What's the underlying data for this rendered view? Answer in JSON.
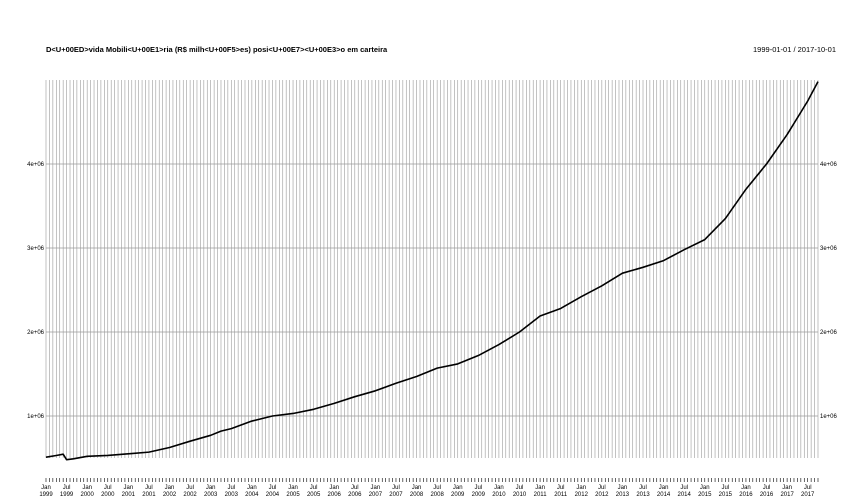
{
  "chart_data": {
    "type": "line",
    "title": "D<U+00ED>vida Mobili<U+00E1>ria (R$ milh<U+00F5>es) posi<U+00E7><U+00E3>o em carteira",
    "date_range": "1999-01-01 / 2017-10-01",
    "xlabel": "",
    "ylabel": "",
    "x_start": "1999-01",
    "x_end": "2017-10",
    "frequency": "monthly",
    "xlim": [
      "1999-01",
      "2017-10"
    ],
    "ylim": [
      500000,
      5000000
    ],
    "grid": true,
    "y_ticks": [
      {
        "value": 1000000,
        "label": "1e+06"
      },
      {
        "value": 2000000,
        "label": "2e+06"
      },
      {
        "value": 3000000,
        "label": "3e+06"
      },
      {
        "value": 4000000,
        "label": "4e+06"
      }
    ],
    "x_tick_labels": [
      {
        "date": "1999-01",
        "month": "Jan",
        "year": "1999"
      },
      {
        "date": "1999-07",
        "month": "Jul",
        "year": "1999"
      },
      {
        "date": "2000-01",
        "month": "Jan",
        "year": "2000"
      },
      {
        "date": "2000-07",
        "month": "Jul",
        "year": "2000"
      },
      {
        "date": "2001-01",
        "month": "Jan",
        "year": "2001"
      },
      {
        "date": "2001-07",
        "month": "Jul",
        "year": "2001"
      },
      {
        "date": "2002-01",
        "month": "Jan",
        "year": "2002"
      },
      {
        "date": "2002-07",
        "month": "Jul",
        "year": "2002"
      },
      {
        "date": "2003-01",
        "month": "Jan",
        "year": "2003"
      },
      {
        "date": "2003-07",
        "month": "Jul",
        "year": "2003"
      },
      {
        "date": "2004-01",
        "month": "Jan",
        "year": "2004"
      },
      {
        "date": "2004-07",
        "month": "Jul",
        "year": "2004"
      },
      {
        "date": "2005-01",
        "month": "Jan",
        "year": "2005"
      },
      {
        "date": "2005-07",
        "month": "Jul",
        "year": "2005"
      },
      {
        "date": "2006-01",
        "month": "Jan",
        "year": "2006"
      },
      {
        "date": "2006-07",
        "month": "Jul",
        "year": "2006"
      },
      {
        "date": "2007-01",
        "month": "Jan",
        "year": "2007"
      },
      {
        "date": "2007-07",
        "month": "Jul",
        "year": "2007"
      },
      {
        "date": "2008-01",
        "month": "Jan",
        "year": "2008"
      },
      {
        "date": "2008-07",
        "month": "Jul",
        "year": "2008"
      },
      {
        "date": "2009-01",
        "month": "Jan",
        "year": "2009"
      },
      {
        "date": "2009-07",
        "month": "Jul",
        "year": "2009"
      },
      {
        "date": "2010-01",
        "month": "Jan",
        "year": "2010"
      },
      {
        "date": "2010-07",
        "month": "Jul",
        "year": "2010"
      },
      {
        "date": "2011-01",
        "month": "Jan",
        "year": "2011"
      },
      {
        "date": "2011-07",
        "month": "Jul",
        "year": "2011"
      },
      {
        "date": "2012-01",
        "month": "Jan",
        "year": "2012"
      },
      {
        "date": "2012-07",
        "month": "Jul",
        "year": "2012"
      },
      {
        "date": "2013-01",
        "month": "Jan",
        "year": "2013"
      },
      {
        "date": "2013-07",
        "month": "Jul",
        "year": "2013"
      },
      {
        "date": "2014-01",
        "month": "Jan",
        "year": "2014"
      },
      {
        "date": "2014-07",
        "month": "Jul",
        "year": "2014"
      },
      {
        "date": "2015-01",
        "month": "Jan",
        "year": "2015"
      },
      {
        "date": "2015-07",
        "month": "Jul",
        "year": "2015"
      },
      {
        "date": "2016-01",
        "month": "Jan",
        "year": "2016"
      },
      {
        "date": "2016-07",
        "month": "Jul",
        "year": "2016"
      },
      {
        "date": "2017-01",
        "month": "Jan",
        "year": "2017"
      },
      {
        "date": "2017-07",
        "month": "Jul",
        "year": "2017"
      }
    ],
    "series": [
      {
        "values": [
          {
            "x": "1999-01",
            "y": 510000
          },
          {
            "x": "1999-04",
            "y": 530000
          },
          {
            "x": "1999-06",
            "y": 545000
          },
          {
            "x": "1999-07",
            "y": 480000
          },
          {
            "x": "1999-09",
            "y": 490000
          },
          {
            "x": "2000-01",
            "y": 520000
          },
          {
            "x": "2000-07",
            "y": 530000
          },
          {
            "x": "2001-01",
            "y": 550000
          },
          {
            "x": "2001-07",
            "y": 570000
          },
          {
            "x": "2002-01",
            "y": 625000
          },
          {
            "x": "2002-07",
            "y": 700000
          },
          {
            "x": "2003-01",
            "y": 770000
          },
          {
            "x": "2003-04",
            "y": 820000
          },
          {
            "x": "2003-07",
            "y": 850000
          },
          {
            "x": "2004-01",
            "y": 940000
          },
          {
            "x": "2004-07",
            "y": 1000000
          },
          {
            "x": "2005-01",
            "y": 1030000
          },
          {
            "x": "2005-07",
            "y": 1080000
          },
          {
            "x": "2006-01",
            "y": 1150000
          },
          {
            "x": "2006-07",
            "y": 1230000
          },
          {
            "x": "2007-01",
            "y": 1300000
          },
          {
            "x": "2007-07",
            "y": 1390000
          },
          {
            "x": "2008-01",
            "y": 1470000
          },
          {
            "x": "2008-07",
            "y": 1570000
          },
          {
            "x": "2009-01",
            "y": 1620000
          },
          {
            "x": "2009-07",
            "y": 1720000
          },
          {
            "x": "2010-01",
            "y": 1850000
          },
          {
            "x": "2010-07",
            "y": 2000000
          },
          {
            "x": "2011-01",
            "y": 2190000
          },
          {
            "x": "2011-07",
            "y": 2280000
          },
          {
            "x": "2012-01",
            "y": 2420000
          },
          {
            "x": "2012-07",
            "y": 2550000
          },
          {
            "x": "2013-01",
            "y": 2700000
          },
          {
            "x": "2013-07",
            "y": 2770000
          },
          {
            "x": "2014-01",
            "y": 2850000
          },
          {
            "x": "2014-07",
            "y": 2980000
          },
          {
            "x": "2015-01",
            "y": 3100000
          },
          {
            "x": "2015-07",
            "y": 3350000
          },
          {
            "x": "2016-01",
            "y": 3700000
          },
          {
            "x": "2016-07",
            "y": 4000000
          },
          {
            "x": "2017-01",
            "y": 4350000
          },
          {
            "x": "2017-07",
            "y": 4750000
          },
          {
            "x": "2017-10",
            "y": 4980000
          }
        ]
      }
    ]
  }
}
